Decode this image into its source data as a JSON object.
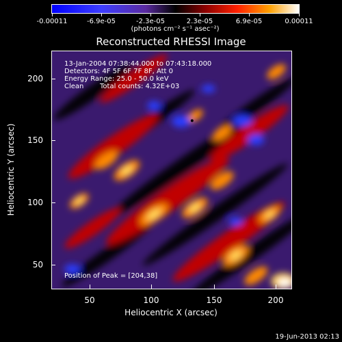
{
  "colorbar": {
    "labels": [
      "-0.00011",
      "-6.9e-05",
      "-2.3e-05",
      "2.3e-05",
      "6.9e-05",
      "0.00011"
    ],
    "unit": "(photons cm⁻² s⁻¹ asec⁻²)"
  },
  "plot": {
    "title": "Reconstructed RHESSI Image",
    "xlabel": "Heliocentric X (arcsec)",
    "ylabel": "Heliocentric Y (arcsec)",
    "xticks": [
      "50",
      "100",
      "150",
      "200"
    ],
    "yticks": [
      "200",
      "150",
      "100",
      "50"
    ],
    "info": {
      "line1": "13-Jan-2004 07:38:44.000 to 07:43:18.000",
      "line2": "Detectors: 4F 5F 6F 7F 8F, Att 0",
      "line3": "Energy Range: 25.0 - 50.0 keV",
      "line4a": "Clean",
      "line4b": "Total counts: 4.32E+03"
    },
    "peak_label": "Position of Peak = [204,38]"
  },
  "timestamp": "19-Jun-2013 02:13",
  "colors": {
    "background": "#000000",
    "foreground": "#ffffff"
  }
}
